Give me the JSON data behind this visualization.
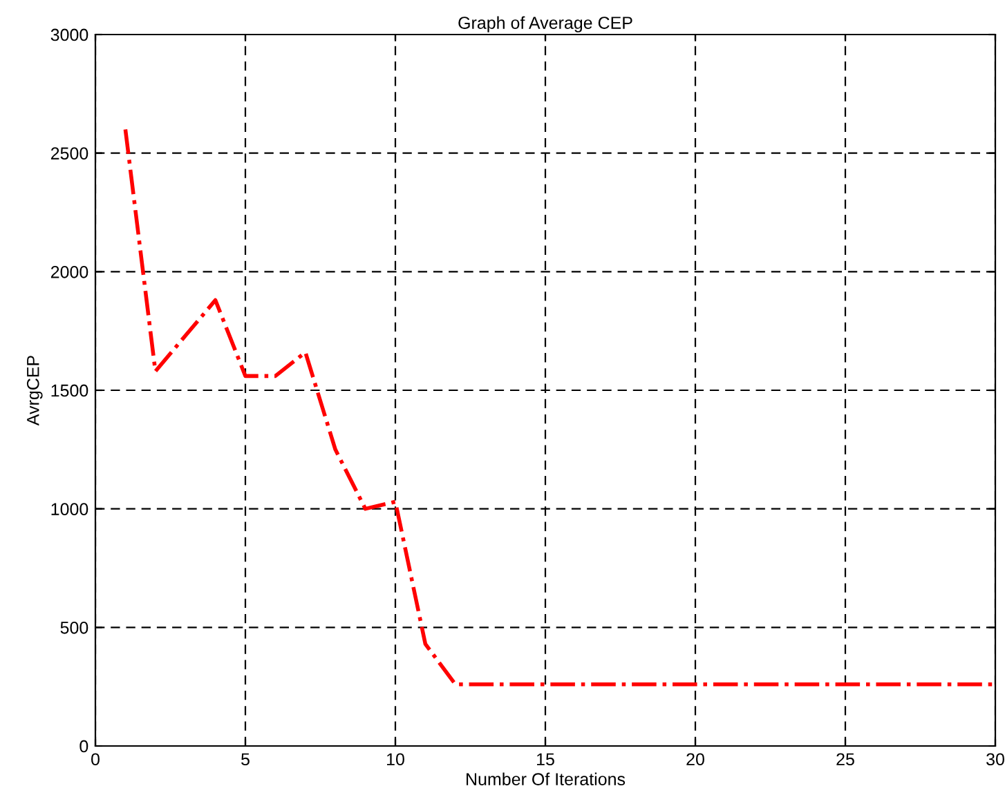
{
  "chart_data": {
    "type": "line",
    "title": "Graph of Average CEP",
    "xlabel": "Number Of Iterations",
    "ylabel": "AvrgCEP",
    "x": [
      1,
      2,
      3,
      4,
      5,
      6,
      7,
      8,
      9,
      10,
      11,
      12,
      13,
      14,
      15,
      16,
      17,
      18,
      19,
      20,
      21,
      22,
      23,
      24,
      25,
      26,
      27,
      28,
      29,
      30
    ],
    "series": [
      {
        "color": "#ff0000",
        "values": [
          2600,
          1580,
          1730,
          1880,
          1560,
          1560,
          1660,
          1250,
          1000,
          1030,
          430,
          260,
          260,
          260,
          260,
          260,
          260,
          260,
          260,
          260,
          260,
          260,
          260,
          260,
          260,
          260,
          260,
          260,
          260,
          260
        ]
      }
    ],
    "line_style": "dashdot",
    "marker": "none",
    "grid": true,
    "xlim": [
      0,
      30
    ],
    "xticks": [
      0,
      5,
      10,
      15,
      20,
      25,
      30
    ],
    "ylim": [
      0,
      3000
    ],
    "yticks": [
      0,
      500,
      1000,
      1500,
      2000,
      2500,
      3000
    ]
  }
}
